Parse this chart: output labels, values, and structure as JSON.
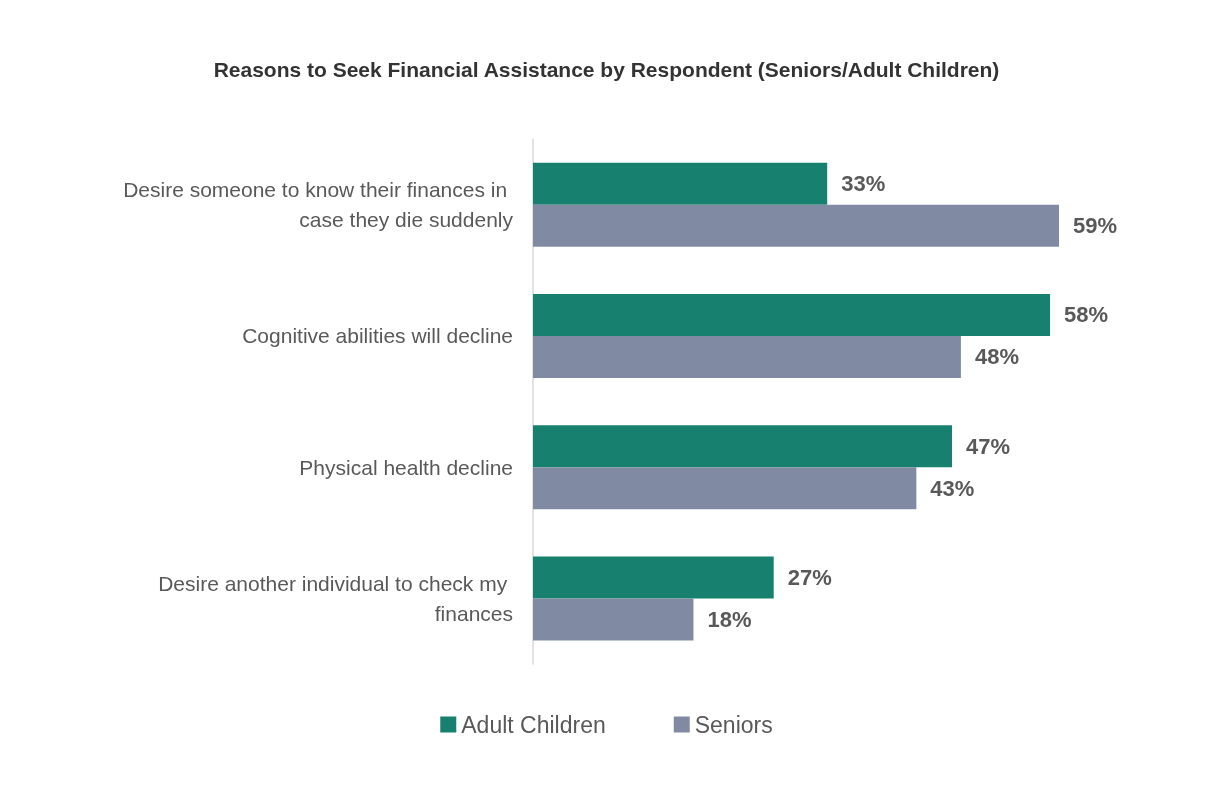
{
  "chart_data": {
    "type": "bar",
    "orientation": "horizontal",
    "title": "Reasons to Seek Financial Assistance by Respondent (Seniors/Adult Children)",
    "categories": [
      "Desire someone to know their finances in case they die suddenly",
      "Cognitive abilities will decline",
      "Physical health decline",
      "Desire another individual to check my finances"
    ],
    "series": [
      {
        "name": "Adult Children",
        "color": "#17806f",
        "values": [
          33,
          58,
          47,
          27
        ],
        "value_labels": [
          "33%",
          "58%",
          "47%",
          "27%"
        ]
      },
      {
        "name": "Seniors",
        "color": "#808ba3",
        "values": [
          59,
          48,
          43,
          18
        ],
        "value_labels": [
          "59%",
          "48%",
          "43%",
          "18%"
        ]
      }
    ],
    "legend": "bottom"
  }
}
